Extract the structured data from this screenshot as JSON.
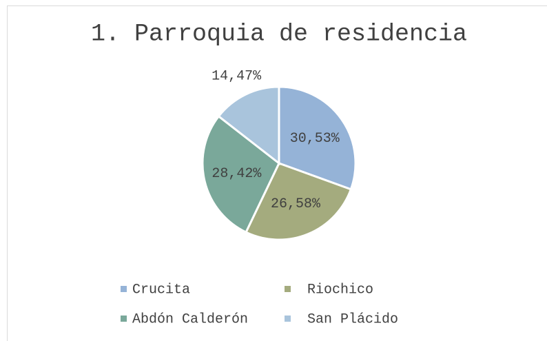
{
  "chart_data": {
    "type": "pie",
    "title": "1. Parroquia de residencia",
    "categories": [
      "Crucita",
      "Riochico",
      "Abdón Calderón",
      "San Plácido"
    ],
    "values": [
      30.53,
      26.58,
      28.42,
      14.47
    ],
    "value_labels": [
      "30,53%",
      "26,58%",
      "28,42%",
      "14,47%"
    ],
    "colors": [
      "#95b3d7",
      "#a4ab7e",
      "#7aa89a",
      "#a9c4dc"
    ],
    "legend": "bottom"
  }
}
